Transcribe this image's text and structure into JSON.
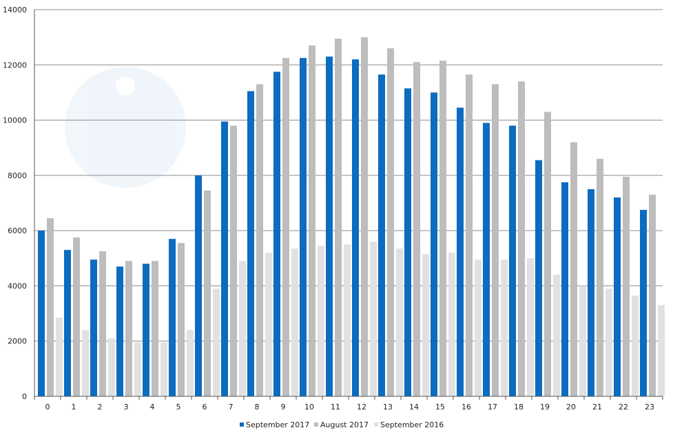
{
  "chart_data": {
    "type": "bar",
    "title": "",
    "xlabel": "",
    "ylabel": "",
    "ylim": [
      0,
      14000
    ],
    "yticks": [
      0,
      2000,
      4000,
      6000,
      8000,
      10000,
      12000,
      14000
    ],
    "grid": true,
    "legend": "bottom",
    "categories": [
      "0",
      "1",
      "2",
      "3",
      "4",
      "5",
      "6",
      "7",
      "8",
      "9",
      "10",
      "11",
      "12",
      "13",
      "14",
      "15",
      "16",
      "17",
      "18",
      "19",
      "20",
      "21",
      "22",
      "23"
    ],
    "series": [
      {
        "name": "September 2017",
        "color": "#0b6cc0",
        "values": [
          6000,
          5300,
          4950,
          4700,
          4800,
          5700,
          8000,
          9950,
          11050,
          11750,
          12250,
          12300,
          12200,
          11650,
          11150,
          11000,
          10450,
          9900,
          9800,
          8550,
          7750,
          7500,
          7200,
          6750
        ]
      },
      {
        "name": "August 2017",
        "color": "#bdbdbd",
        "values": [
          6450,
          5750,
          5250,
          4900,
          4900,
          5550,
          7450,
          9800,
          11300,
          12250,
          12700,
          12950,
          13000,
          12600,
          12100,
          12150,
          11650,
          11300,
          11400,
          10300,
          9200,
          8600,
          7950,
          7300
        ]
      },
      {
        "name": "September 2016",
        "color": "#e1e1e1",
        "values": [
          2850,
          2400,
          2100,
          1950,
          1950,
          2400,
          3900,
          4900,
          5200,
          5350,
          5450,
          5500,
          5600,
          5350,
          5150,
          5200,
          4950,
          4950,
          5000,
          4400,
          4000,
          3900,
          3650,
          3300
        ]
      }
    ]
  }
}
